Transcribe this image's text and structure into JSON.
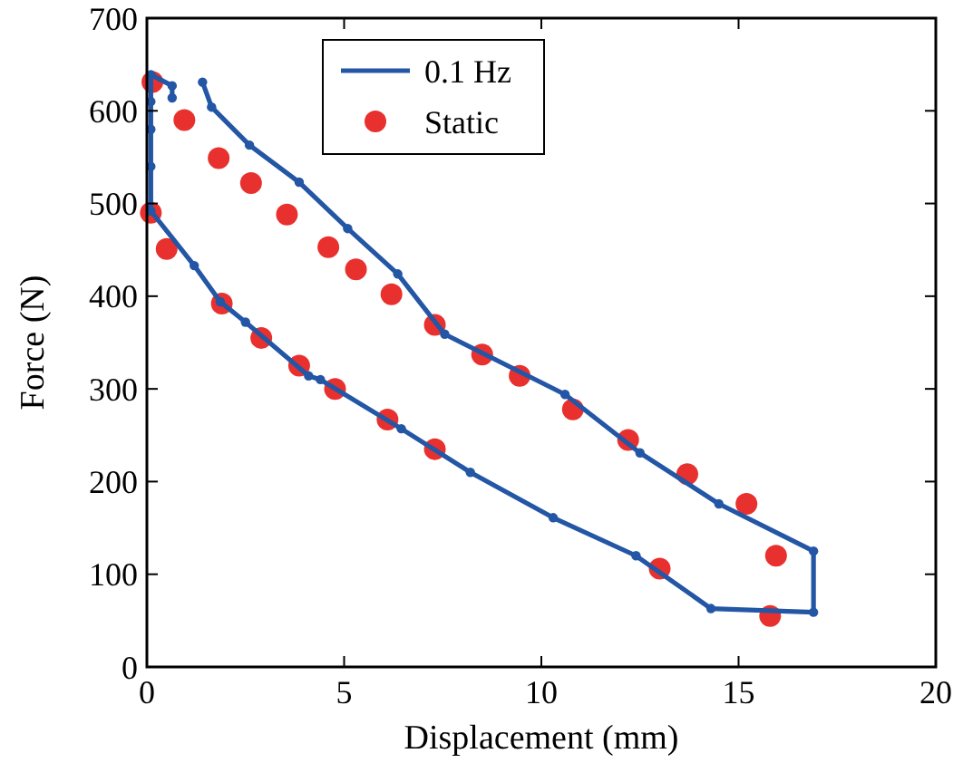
{
  "chart_data": {
    "type": "line",
    "xlabel": "Displacement (mm)",
    "ylabel": "Force (N)",
    "xlim": [
      0,
      20
    ],
    "xticks": [
      0,
      5,
      10,
      15,
      20
    ],
    "ylim": [
      0,
      700
    ],
    "yticks": [
      0,
      100,
      200,
      300,
      400,
      500,
      600,
      700
    ],
    "grid": false,
    "legend": "top",
    "series": [
      {
        "name": "0.1 Hz",
        "color": "#2456a6",
        "marker": "circle",
        "line_style": "solid",
        "x": [
          1.41,
          1.64,
          2.6,
          3.86,
          5.09,
          6.36,
          7.55,
          10.6,
          12.5,
          14.5,
          16.9,
          16.9,
          14.3,
          12.4,
          10.3,
          8.2,
          6.45,
          4.4,
          4.1,
          2.5,
          1.86,
          1.2,
          0.1,
          0.1,
          0.1,
          0.1,
          0.1,
          0.64,
          0.64
        ],
        "values": [
          631,
          604,
          563,
          523,
          473,
          424,
          359,
          294,
          231,
          176,
          125,
          59,
          63,
          120,
          161,
          210,
          257,
          310,
          314,
          372,
          394,
          433,
          492,
          540,
          580,
          610,
          639,
          627,
          614
        ]
      },
      {
        "name": "Static",
        "type": "scatter",
        "color": "#e8302e",
        "marker": "circle",
        "x": [
          0.14,
          0.95,
          1.82,
          2.64,
          3.55,
          4.6,
          5.3,
          6.2,
          7.3,
          8.5,
          9.45,
          10.8,
          12.2,
          13.7,
          15.2,
          15.95,
          15.8,
          13.0,
          0.1,
          0.5,
          1.9,
          2.9,
          3.86,
          4.77,
          6.1,
          7.3
        ],
        "values": [
          631,
          590,
          549,
          522,
          488,
          453,
          429,
          402,
          369,
          337,
          314,
          278,
          245,
          208,
          176,
          120,
          55,
          106,
          490,
          451,
          392,
          355,
          325,
          300,
          267,
          235
        ]
      }
    ]
  }
}
